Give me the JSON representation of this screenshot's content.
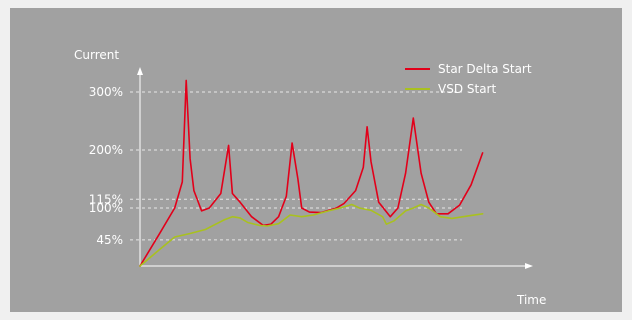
{
  "chart_data": {
    "type": "line",
    "ylabel": "Current",
    "xlabel": "Time",
    "y_ticks": [
      {
        "value": 300,
        "label": "300%"
      },
      {
        "value": 200,
        "label": "200%"
      },
      {
        "value": 115,
        "label": "115%"
      },
      {
        "value": 100,
        "label": "100%"
      },
      {
        "value": 45,
        "label": "45%"
      }
    ],
    "ylim": [
      0,
      330
    ],
    "xlim": [
      0,
      100
    ],
    "grid": true,
    "legend_position": "top-right",
    "series": [
      {
        "name": "Star Delta Start",
        "color": "#e2001a",
        "points": [
          [
            0,
            0
          ],
          [
            5,
            55
          ],
          [
            9,
            100
          ],
          [
            11,
            145
          ],
          [
            12,
            320
          ],
          [
            13,
            185
          ],
          [
            14,
            130
          ],
          [
            16,
            95
          ],
          [
            18,
            100
          ],
          [
            21,
            125
          ],
          [
            23,
            208
          ],
          [
            24,
            125
          ],
          [
            26,
            110
          ],
          [
            29,
            85
          ],
          [
            32,
            70
          ],
          [
            34,
            72
          ],
          [
            36,
            85
          ],
          [
            38,
            120
          ],
          [
            39.5,
            212
          ],
          [
            41,
            150
          ],
          [
            42,
            100
          ],
          [
            44,
            93
          ],
          [
            47,
            92
          ],
          [
            51,
            100
          ],
          [
            53,
            108
          ],
          [
            56,
            130
          ],
          [
            58,
            170
          ],
          [
            59,
            240
          ],
          [
            60,
            180
          ],
          [
            62,
            110
          ],
          [
            65,
            85
          ],
          [
            67,
            100
          ],
          [
            69,
            160
          ],
          [
            71,
            255
          ],
          [
            73,
            160
          ],
          [
            75,
            110
          ],
          [
            77,
            90
          ],
          [
            80,
            90
          ],
          [
            83,
            105
          ],
          [
            86,
            140
          ],
          [
            89,
            195
          ]
        ]
      },
      {
        "name": "VSD Start",
        "color": "#a9c11f",
        "points": [
          [
            0,
            0
          ],
          [
            5,
            28
          ],
          [
            9,
            50
          ],
          [
            13,
            56
          ],
          [
            17,
            63
          ],
          [
            19,
            70
          ],
          [
            22,
            80
          ],
          [
            24,
            85
          ],
          [
            26,
            83
          ],
          [
            28,
            75
          ],
          [
            31,
            70
          ],
          [
            33,
            69
          ],
          [
            36,
            73
          ],
          [
            39,
            88
          ],
          [
            42,
            85
          ],
          [
            45,
            88
          ],
          [
            49,
            95
          ],
          [
            52,
            100
          ],
          [
            55,
            106
          ],
          [
            57,
            100
          ],
          [
            60,
            96
          ],
          [
            63,
            85
          ],
          [
            64,
            72
          ],
          [
            66,
            78
          ],
          [
            69,
            95
          ],
          [
            71,
            100
          ],
          [
            73,
            106
          ],
          [
            75,
            100
          ],
          [
            78,
            85
          ],
          [
            81,
            82
          ],
          [
            85,
            86
          ],
          [
            89,
            90
          ]
        ]
      }
    ]
  }
}
